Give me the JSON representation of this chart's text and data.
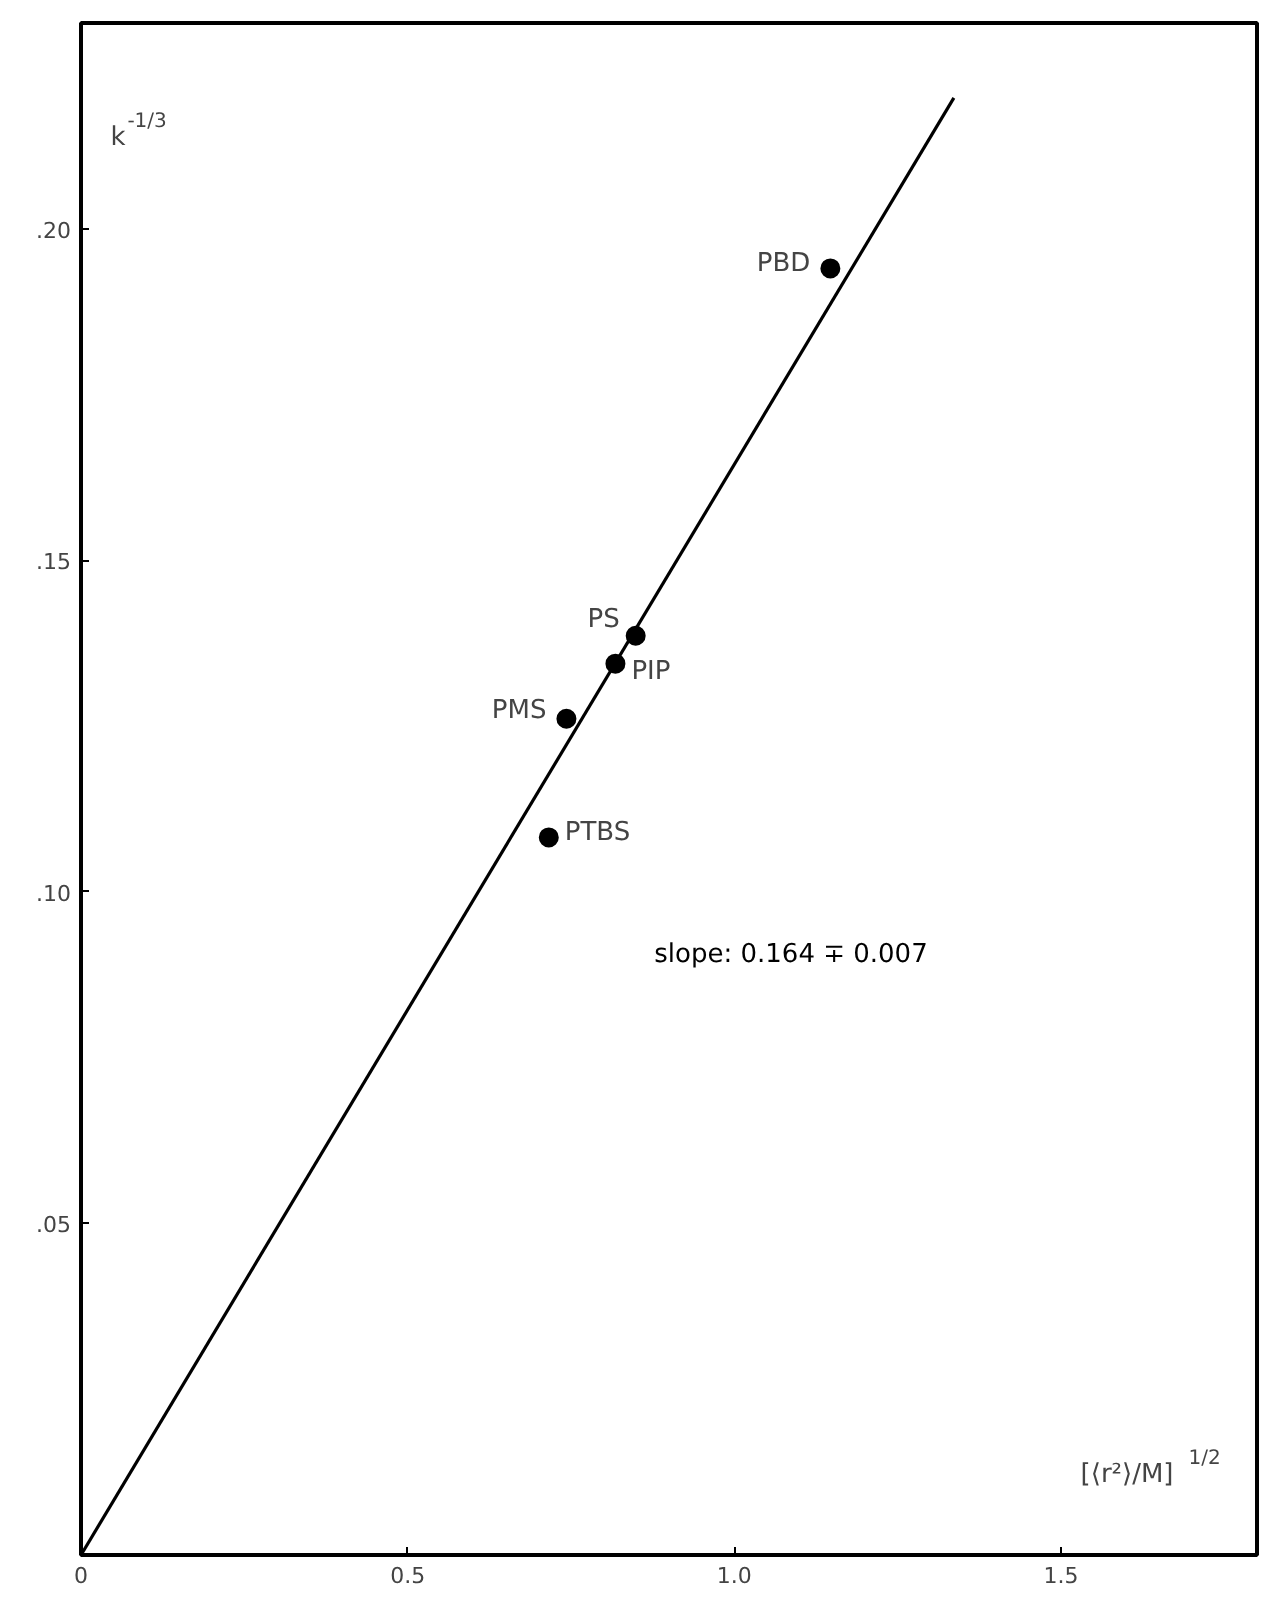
{
  "chart_data": {
    "type": "scatter",
    "xlabel": "[⟨r²⟩/M]$^{1/2}$",
    "ylabel": "k$^{-1/3}$",
    "xlim": [
      0,
      1.8
    ],
    "ylim": [
      0,
      0.231
    ],
    "xticks": [
      0,
      0.5,
      {
        "value": 1,
        "label": "1.0"
      },
      1.5
    ],
    "yticks": [
      {
        "value": 0.05,
        "label": ".05"
      },
      {
        "value": 0.1,
        "label": ".10"
      },
      {
        "value": 0.15,
        "label": ".15"
      },
      {
        "value": 0.2,
        "label": ".20"
      }
    ],
    "grid": false,
    "marker": "circle",
    "series": [
      {
        "name": "PBD",
        "color": "#000000",
        "x": [
          1.147
        ],
        "values": [
          0.194
        ]
      },
      {
        "name": "PS",
        "color": "#000000",
        "x": [
          0.849
        ],
        "values": [
          0.1386
        ]
      },
      {
        "name": "PIP",
        "color": "#000000",
        "x": [
          0.818
        ],
        "values": [
          0.1344
        ]
      },
      {
        "name": "PMS",
        "color": "#000000",
        "x": [
          0.743
        ],
        "values": [
          0.1261
        ]
      },
      {
        "name": "PTBS",
        "color": "#000000",
        "x": [
          0.716
        ],
        "values": [
          0.1082
        ]
      },
      {
        "type": "line",
        "color": "#000000",
        "x": [
          0,
          1.336
        ],
        "values": [
          0,
          0.2197
        ],
        "marker": "none",
        "line_style": "solid"
      }
    ],
    "annotations": [
      "slope: 0.164 ∓ 0.007"
    ]
  }
}
